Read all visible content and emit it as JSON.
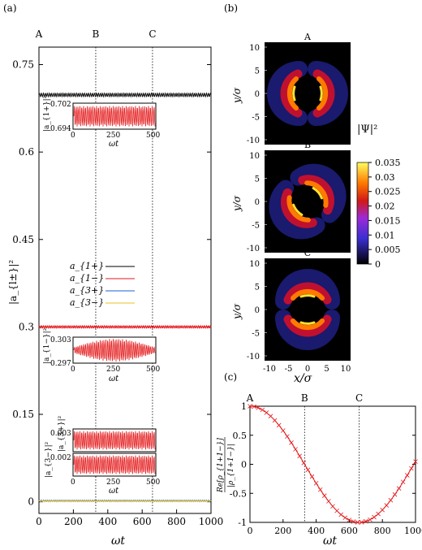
{
  "panels": {
    "a": {
      "tag": "(a)",
      "markers": [
        "A",
        "B",
        "C"
      ],
      "marker_times": [
        0,
        330,
        660
      ],
      "ylabel": "|a_{l±}|²",
      "xlabel": "ωt",
      "yticks": [
        "0",
        "0.15",
        "0.3",
        "0.45",
        "0.6",
        "0.75"
      ],
      "xticks": [
        "0",
        "200",
        "400",
        "600",
        "800",
        "1000"
      ],
      "legend": [
        "a_{1+}",
        "a_{1−}",
        "a_{3+}",
        "a_{3−}"
      ],
      "inset_a1p": {
        "ylabel": "|a_{1+}|²",
        "ymax": "0.702",
        "ymin": "0.694",
        "xticks": [
          "0",
          "250",
          "500"
        ],
        "xlabel": "ωt"
      },
      "inset_a1m": {
        "ylabel": "|a_{1−}|²",
        "ymax": "0.303",
        "ymin": "0.297",
        "xticks": [
          "0",
          "250",
          "500"
        ],
        "xlabel": "ωt"
      },
      "inset_a3p": {
        "ylabel": "|a_{3+}|²",
        "ymax": "0.003"
      },
      "inset_a3m": {
        "ylabel": "|a_{3−}|²",
        "ymax": "0.002",
        "xticks": [
          "0",
          "250",
          "500"
        ],
        "xlabel": "ωt"
      }
    },
    "b": {
      "tag": "(b)",
      "titles": [
        "A",
        "B",
        "C"
      ],
      "ylabel": "y/σ",
      "xlabel": "x/σ",
      "yticks": [
        "10",
        "5",
        "0",
        "-5",
        "-10"
      ],
      "xticks": [
        "-10",
        "-5",
        "0",
        "5",
        "10"
      ],
      "colorbar_label": "|Ψ|²",
      "colorbar_ticks": [
        "0.035",
        "0.03",
        "0.025",
        "0.02",
        "0.015",
        "0.01",
        "0.005",
        "0"
      ]
    },
    "c": {
      "tag": "(c)",
      "markers": [
        "A",
        "B",
        "C"
      ],
      "ylabel_num": "Re[ρ_{1+1−}]",
      "ylabel_den": "|ρ_{1+1−}|",
      "xlabel": "ωt",
      "yticks": [
        "1",
        "0.5",
        "0",
        "-0.5",
        "-1"
      ],
      "xticks": [
        "0",
        "200",
        "400",
        "600",
        "800",
        "1000"
      ]
    }
  },
  "colors": {
    "a1p": "#000000",
    "a1m": "#e41a1c",
    "a3p": "#1f5fd6",
    "a3m": "#e8c020"
  },
  "chart_data": [
    {
      "type": "line",
      "panel": "a",
      "xlabel": "ωt",
      "ylabel": "|a_{l±}|²",
      "xlim": [
        0,
        1000
      ],
      "ylim": [
        -0.02,
        0.78
      ],
      "series": [
        {
          "name": "a_{1+}",
          "mean": 0.698,
          "amplitude": 0.003
        },
        {
          "name": "a_{1−}",
          "mean": 0.3,
          "amplitude": 0.002
        },
        {
          "name": "a_{3+}",
          "mean": 0.0015,
          "amplitude": 0.0015
        },
        {
          "name": "a_{3−}",
          "mean": 0.001,
          "amplitude": 0.001
        }
      ]
    },
    {
      "type": "line",
      "panel": "c",
      "xlabel": "ωt",
      "xlim": [
        0,
        1000
      ],
      "ylim": [
        -1,
        1
      ],
      "series": [
        {
          "x": [
            0,
            100,
            200,
            300,
            400,
            500,
            600,
            660,
            700,
            800,
            900,
            1000
          ],
          "values": [
            1,
            0.89,
            0.57,
            0.14,
            -0.33,
            -0.72,
            -0.96,
            -1,
            -0.98,
            -0.75,
            -0.39,
            0.03
          ]
        }
      ]
    }
  ]
}
